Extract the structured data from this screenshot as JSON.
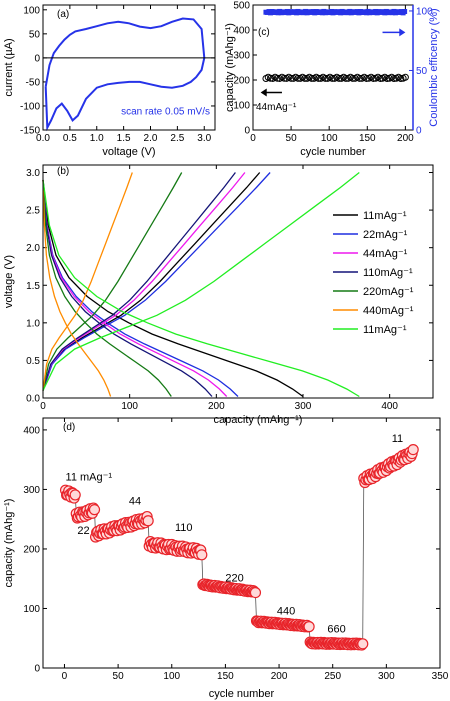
{
  "colors": {
    "blue": "#2633e8",
    "black": "#000000",
    "red": "#e8242a",
    "pink_fill": "#ffd9d9"
  },
  "chart_data": [
    {
      "panel": "(a)",
      "type": "line",
      "xlabel": "voltage (V)",
      "ylabel": "current (µA)",
      "xlim": [
        0.0,
        3.2
      ],
      "ylim": [
        -150,
        110
      ],
      "xticks": [
        "0.0",
        "0.5",
        "1.0",
        "1.5",
        "2.0",
        "2.5",
        "3.0"
      ],
      "yticks": [
        "-150",
        "-100",
        "-50",
        "0",
        "50",
        "100"
      ],
      "annotation": "scan rate 0.05 mV/s",
      "series": [
        {
          "color": "#2633e8",
          "x": [
            0.05,
            0.12,
            0.2,
            0.3,
            0.4,
            0.5,
            0.6,
            0.8,
            1.0,
            1.2,
            1.4,
            1.6,
            1.8,
            2.0,
            2.2,
            2.4,
            2.6,
            2.8,
            2.95,
            3.0,
            2.95,
            2.85,
            2.75,
            2.6,
            2.4,
            2.2,
            2.0,
            1.8,
            1.6,
            1.4,
            1.2,
            1.0,
            0.8,
            0.65,
            0.55,
            0.45,
            0.35,
            0.25,
            0.15,
            0.08,
            0.05
          ],
          "y": [
            -60,
            -15,
            10,
            25,
            38,
            48,
            55,
            60,
            66,
            72,
            75,
            72,
            65,
            62,
            66,
            75,
            82,
            80,
            60,
            0,
            -25,
            -40,
            -50,
            -58,
            -62,
            -60,
            -55,
            -50,
            -50,
            -52,
            -55,
            -62,
            -85,
            -120,
            -130,
            -110,
            -95,
            -105,
            -130,
            -145,
            -60
          ]
        }
      ]
    },
    {
      "panel": "(c)",
      "type": "scatter",
      "xlabel": "cycle number",
      "ylabel_left": "capacity (mAhg⁻¹)",
      "ylabel_right": "Coulombic efficency (%)",
      "xlim": [
        0,
        210
      ],
      "ylim_left": [
        0,
        500
      ],
      "ylim_right": [
        0,
        105
      ],
      "xticks": [
        "0",
        "50",
        "100",
        "150",
        "200"
      ],
      "yticks_left": [
        "0",
        "100",
        "200",
        "300",
        "400",
        "500"
      ],
      "yticks_right": [
        "0",
        "50",
        "100"
      ],
      "annotation": "44mAg⁻¹",
      "series": [
        {
          "name": "capacity",
          "color": "#000000",
          "axis": "left",
          "x_start": 17,
          "x_end": 200,
          "x_step": 3,
          "value": 208
        },
        {
          "name": "efficiency",
          "color": "#2633e8",
          "axis": "right",
          "x_start": 17,
          "x_end": 200,
          "x_step": 2,
          "value": 99
        }
      ]
    },
    {
      "panel": "(b)",
      "type": "line",
      "xlabel": "capacity (mAhg⁻¹)",
      "ylabel": "voltage (V)",
      "xlim": [
        0,
        450
      ],
      "ylim": [
        0,
        3.1
      ],
      "xticks": [
        "0",
        "100",
        "200",
        "300",
        "400"
      ],
      "yticks": [
        "0.0",
        "0.5",
        "1.0",
        "1.5",
        "2.0",
        "2.5",
        "3.0"
      ],
      "legend_position": "right",
      "series": [
        {
          "name": "11mAg⁻¹",
          "color": "#000000",
          "discharge_cap": 300,
          "charge_cap": 250
        },
        {
          "name": "22mAg⁻¹",
          "color": "#1f2fe0",
          "discharge_cap": 225,
          "charge_cap": 262
        },
        {
          "name": "44mAg⁻¹",
          "color": "#ee18ee",
          "discharge_cap": 212,
          "charge_cap": 233
        },
        {
          "name": "110mAg⁻¹",
          "color": "#141478",
          "discharge_cap": 195,
          "charge_cap": 222
        },
        {
          "name": "220mAg⁻¹",
          "color": "#157a15",
          "discharge_cap": 148,
          "charge_cap": 160
        },
        {
          "name": "440mAg⁻¹",
          "color": "#ff8c00",
          "discharge_cap": 78,
          "charge_cap": 103
        },
        {
          "name": "11mAg⁻¹",
          "color": "#22ee22",
          "discharge_cap": 365,
          "charge_cap": 365
        }
      ]
    },
    {
      "panel": "(d)",
      "type": "scatter",
      "xlabel": "cycle number",
      "ylabel": "capacity (mAhg⁻¹)",
      "xlim": [
        -20,
        350
      ],
      "ylim": [
        0,
        420
      ],
      "xticks": [
        "0",
        "50",
        "100",
        "150",
        "200",
        "250",
        "300",
        "350"
      ],
      "yticks": [
        "0",
        "100",
        "200",
        "300",
        "400"
      ],
      "rate_labels": [
        {
          "text": "11 mAg⁻¹",
          "x": 1,
          "y": 315
        },
        {
          "text": "22",
          "x": 12,
          "y": 225
        },
        {
          "text": "44",
          "x": 60,
          "y": 275
        },
        {
          "text": "110",
          "x": 103,
          "y": 230
        },
        {
          "text": "220",
          "x": 150,
          "y": 145
        },
        {
          "text": "440",
          "x": 198,
          "y": 90
        },
        {
          "text": "660",
          "x": 245,
          "y": 60
        },
        {
          "text": "11",
          "x": 305,
          "y": 380
        }
      ],
      "groups": [
        {
          "x_start": 1,
          "x_end": 10,
          "y_start": 294,
          "y_end": 290
        },
        {
          "x_start": 11,
          "x_end": 28,
          "y_start": 255,
          "y_end": 265
        },
        {
          "x_start": 29,
          "x_end": 78,
          "y_start": 225,
          "y_end": 250
        },
        {
          "x_start": 79,
          "x_end": 128,
          "y_start": 208,
          "y_end": 195
        },
        {
          "x_start": 129,
          "x_end": 178,
          "y_start": 140,
          "y_end": 128
        },
        {
          "x_start": 179,
          "x_end": 228,
          "y_start": 78,
          "y_end": 70
        },
        {
          "x_start": 229,
          "x_end": 278,
          "y_start": 42,
          "y_end": 40
        },
        {
          "x_start": 279,
          "x_end": 325,
          "y_start": 315,
          "y_end": 362
        }
      ]
    }
  ]
}
